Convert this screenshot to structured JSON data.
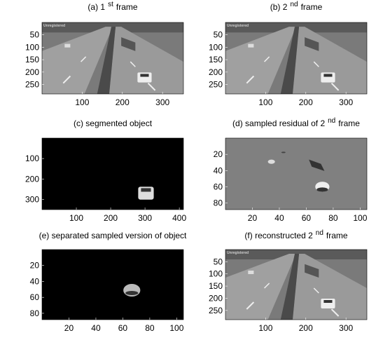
{
  "panels": [
    {
      "title": {
        "text": "(a) 1",
        "sup": "st",
        "after": "frame"
      },
      "xlim": [
        0,
        352
      ],
      "ylim": [
        0,
        288
      ],
      "xticks": [
        100,
        200,
        300
      ],
      "yticks": [
        50,
        100,
        150,
        200,
        250
      ]
    },
    {
      "title": {
        "text": "(b) 2",
        "sup": "nd",
        "after": "frame"
      },
      "xlim": [
        0,
        352
      ],
      "ylim": [
        0,
        288
      ],
      "xticks": [
        100,
        200,
        300
      ],
      "yticks": [
        50,
        100,
        150,
        200,
        250
      ]
    },
    {
      "title": {
        "text": "(c) segmented object"
      },
      "xlim": [
        0,
        412
      ],
      "ylim": [
        0,
        350
      ],
      "xticks": [
        100,
        200,
        300,
        400
      ],
      "yticks": [
        100,
        200,
        300
      ]
    },
    {
      "title": {
        "text": "(d) sampled residual of 2",
        "sup": "nd",
        "after": "frame"
      },
      "xlim": [
        0,
        105
      ],
      "ylim": [
        0,
        88
      ],
      "xticks": [
        20,
        40,
        60,
        80,
        100
      ],
      "yticks": [
        20,
        40,
        60,
        80
      ]
    },
    {
      "title": {
        "text": "(e) separated sampled version of object"
      },
      "xlim": [
        0,
        105
      ],
      "ylim": [
        0,
        88
      ],
      "xticks": [
        20,
        40,
        60,
        80,
        100
      ],
      "yticks": [
        20,
        40,
        60,
        80
      ]
    },
    {
      "title": {
        "text": "(f) reconstructed 2",
        "sup": "nd",
        "after": "frame"
      },
      "xlim": [
        0,
        352
      ],
      "ylim": [
        0,
        288
      ],
      "xticks": [
        100,
        200,
        300
      ],
      "yticks": [
        50,
        100,
        150,
        200,
        250
      ]
    }
  ]
}
